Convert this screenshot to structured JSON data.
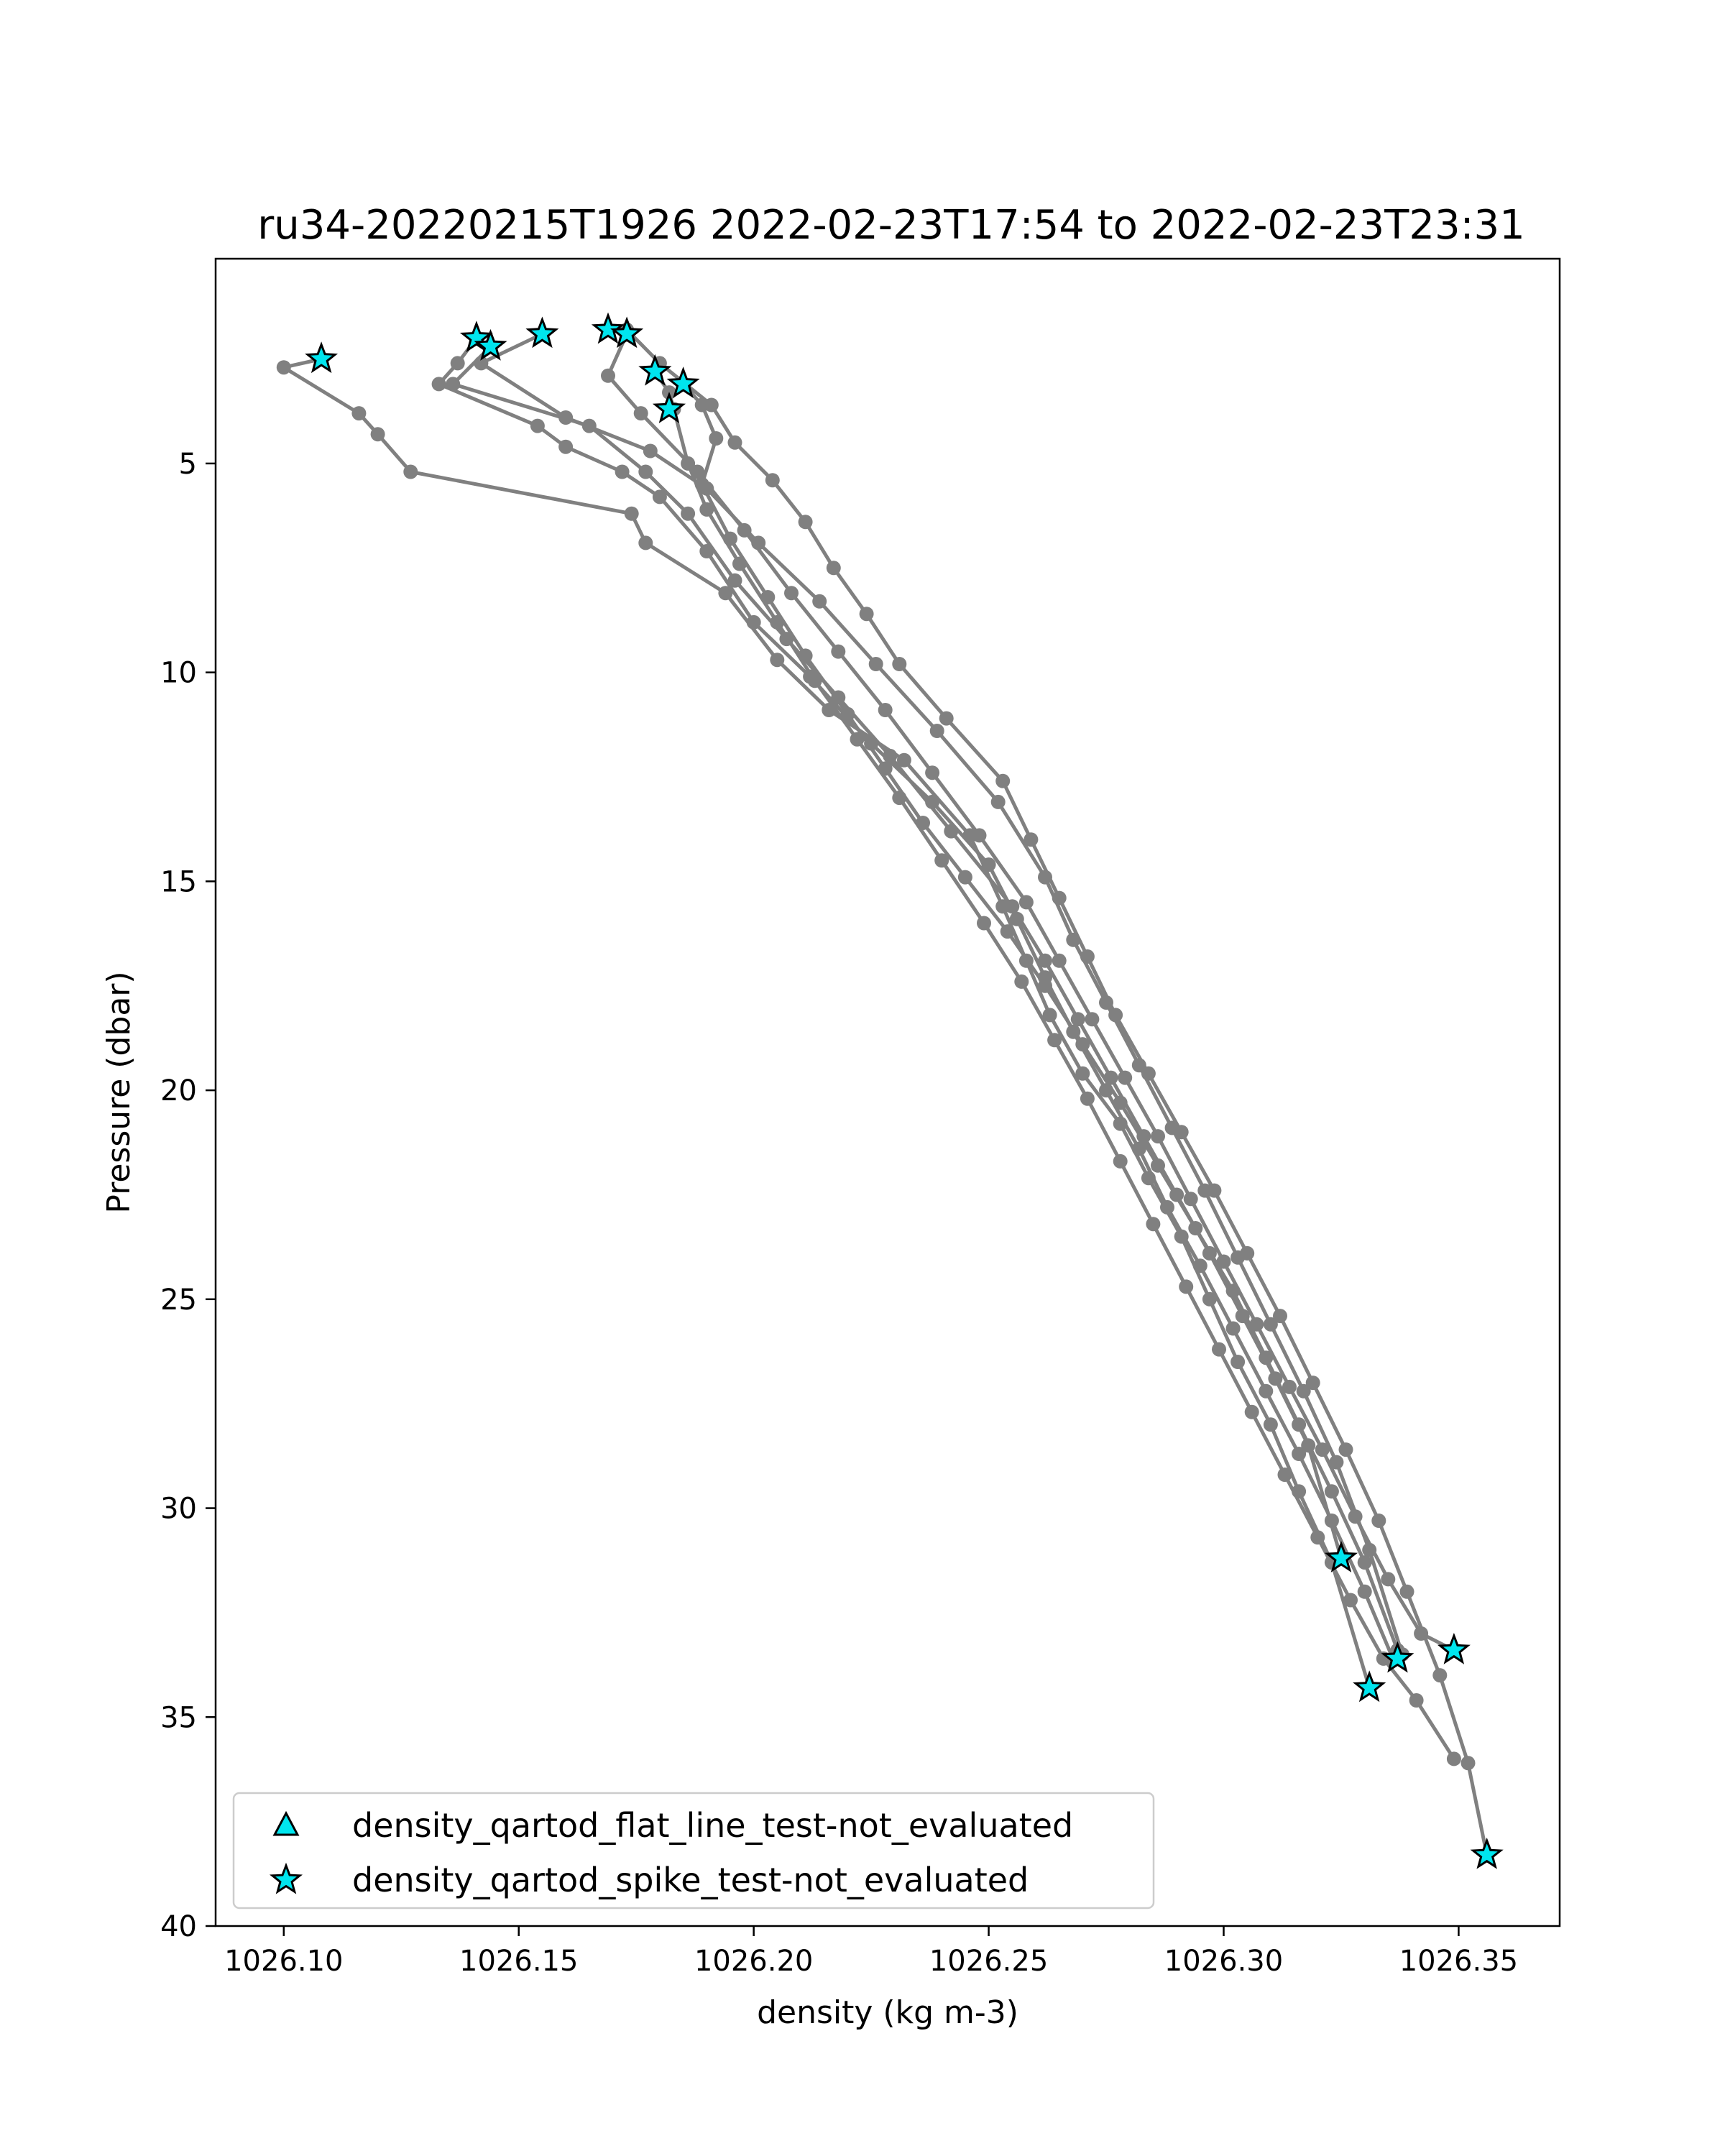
{
  "chart_data": {
    "type": "line",
    "title": "ru34-20220215T1926 2022-02-23T17:54 to 2022-02-23T23:31",
    "xlabel": "density (kg m-3)",
    "ylabel": "Pressure (dbar)",
    "xlim": [
      1026.0855,
      1026.3715
    ],
    "ylim": [
      40,
      0.1
    ],
    "y_inverted": true,
    "xticks": [
      1026.1,
      1026.15,
      1026.2,
      1026.25,
      1026.3,
      1026.35
    ],
    "xtick_labels": [
      "1026.10",
      "1026.15",
      "1026.20",
      "1026.25",
      "1026.30",
      "1026.35"
    ],
    "yticks": [
      5,
      10,
      15,
      20,
      25,
      30,
      35,
      40
    ],
    "ytick_labels": [
      "5",
      "10",
      "15",
      "20",
      "25",
      "30",
      "35",
      "40"
    ],
    "grid": false,
    "legend_position": "lower-left",
    "colors": {
      "profile_line": "#808080",
      "marker_fill": "#00e5ee",
      "marker_edge": "#000000"
    },
    "legend": [
      {
        "label": "density_qartod_flat_line_test-not_evaluated",
        "marker": "triangle"
      },
      {
        "label": "density_qartod_spike_test-not_evaluated",
        "marker": "star"
      }
    ],
    "series": [
      {
        "x": [
          1026.108,
          1026.1,
          1026.116,
          1026.12,
          1026.127,
          1026.174,
          1026.177,
          1026.194,
          1026.205,
          1026.216,
          1026.232,
          1026.246,
          1026.253,
          1026.258,
          1026.263,
          1026.27,
          1026.278,
          1026.284,
          1026.291,
          1026.297,
          1026.303,
          1026.31,
          1026.316,
          1026.323,
          1026.331
        ],
        "y": [
          2.5,
          2.7,
          3.8,
          4.3,
          5.2,
          6.2,
          6.9,
          8.1,
          9.7,
          10.9,
          12.1,
          13.9,
          15.6,
          16.9,
          18.2,
          19.6,
          20.8,
          22.1,
          23.5,
          25.0,
          26.5,
          28.0,
          29.6,
          31.3,
          34.3
        ]
      },
      {
        "x": [
          1026.141,
          1026.137,
          1026.133,
          1026.154,
          1026.16,
          1026.172,
          1026.18,
          1026.19,
          1026.2,
          1026.212,
          1026.225,
          1026.238,
          1026.25,
          1026.256,
          1026.262,
          1026.268,
          1026.275,
          1026.282,
          1026.288,
          1026.295,
          1026.302,
          1026.309,
          1026.316,
          1026.323,
          1026.33,
          1026.336
        ],
        "y": [
          2.0,
          2.6,
          3.1,
          4.1,
          4.6,
          5.2,
          5.8,
          7.1,
          8.8,
          10.1,
          11.7,
          13.1,
          14.6,
          15.9,
          17.3,
          18.6,
          20.0,
          21.4,
          22.8,
          24.2,
          25.7,
          27.2,
          28.7,
          30.3,
          32.0,
          33.6
        ]
      },
      {
        "x": [
          1026.144,
          1026.136,
          1026.165,
          1026.177,
          1026.186,
          1026.196,
          1026.207,
          1026.218,
          1026.229,
          1026.242,
          1026.255,
          1026.262,
          1026.269,
          1026.276,
          1026.283,
          1026.29,
          1026.297,
          1026.304,
          1026.311,
          1026.318,
          1026.325
        ],
        "y": [
          2.2,
          3.1,
          4.1,
          5.2,
          6.2,
          7.8,
          9.2,
          10.6,
          12.0,
          13.8,
          15.6,
          16.9,
          18.3,
          19.7,
          21.1,
          22.5,
          23.9,
          25.4,
          26.9,
          28.5,
          31.2
        ]
      },
      {
        "x": [
          1026.155,
          1026.142,
          1026.16,
          1026.178,
          1026.19,
          1026.201,
          1026.214,
          1026.226,
          1026.239,
          1026.252,
          1026.262,
          1026.268,
          1026.275,
          1026.282,
          1026.289,
          1026.296,
          1026.303,
          1026.31,
          1026.317,
          1026.324,
          1026.331,
          1026.338
        ],
        "y": [
          1.9,
          2.6,
          3.9,
          4.7,
          5.6,
          6.9,
          8.3,
          9.8,
          11.4,
          13.1,
          14.9,
          16.4,
          17.9,
          19.4,
          20.9,
          22.4,
          24.0,
          25.6,
          27.2,
          28.9,
          31.0,
          33.5
        ]
      },
      {
        "x": [
          1026.169,
          1026.173,
          1026.18,
          1026.191,
          1026.196,
          1026.204,
          1026.211,
          1026.217,
          1026.224,
          1026.231,
          1026.241,
          1026.253,
          1026.259,
          1026.265,
          1026.271,
          1026.277,
          1026.284,
          1026.291,
          1026.298,
          1026.305,
          1026.312,
          1026.319,
          1026.326,
          1026.333,
          1026.339,
          1026.346,
          1026.352,
          1026.356
        ],
        "y": [
          1.8,
          1.8,
          2.6,
          3.6,
          4.5,
          5.4,
          6.4,
          7.5,
          8.6,
          9.8,
          11.1,
          12.6,
          14.0,
          15.4,
          16.8,
          18.2,
          19.6,
          21.0,
          22.4,
          23.9,
          25.4,
          27.0,
          28.6,
          30.3,
          32.0,
          34.0,
          36.1,
          38.3
        ]
      },
      {
        "x": [
          1026.173,
          1026.169,
          1026.176,
          1026.188,
          1026.198,
          1026.208,
          1026.218,
          1026.228,
          1026.238,
          1026.248,
          1026.258,
          1026.265,
          1026.272,
          1026.279,
          1026.286,
          1026.293,
          1026.3,
          1026.307,
          1026.314,
          1026.321,
          1026.328,
          1026.335,
          1026.342,
          1026.349
        ],
        "y": [
          1.9,
          2.9,
          3.8,
          5.2,
          6.6,
          8.1,
          9.5,
          10.9,
          12.4,
          13.9,
          15.5,
          16.9,
          18.3,
          19.7,
          21.1,
          22.6,
          24.1,
          25.6,
          27.1,
          28.6,
          30.2,
          31.7,
          33.0,
          33.4
        ]
      },
      {
        "x": [
          1026.179,
          1026.182,
          1026.183,
          1026.186,
          1026.19,
          1026.197,
          1026.205,
          1026.213,
          1026.222,
          1026.231,
          1026.24,
          1026.249,
          1026.257,
          1026.264,
          1026.271,
          1026.278,
          1026.285,
          1026.292,
          1026.299,
          1026.306,
          1026.313,
          1026.32,
          1026.327,
          1026.334,
          1026.341,
          1026.349
        ],
        "y": [
          2.8,
          3.3,
          3.7,
          5.0,
          6.1,
          7.4,
          8.8,
          10.2,
          11.6,
          13.0,
          14.5,
          16.0,
          17.4,
          18.8,
          20.2,
          21.7,
          23.2,
          24.7,
          26.2,
          27.7,
          29.2,
          30.7,
          32.2,
          33.6,
          34.6,
          36.0
        ]
      },
      {
        "x": [
          1026.185,
          1026.189,
          1026.192,
          1026.189,
          1026.195,
          1026.203,
          1026.211,
          1026.22,
          1026.228,
          1026.236,
          1026.245,
          1026.254,
          1026.262,
          1026.27,
          1026.278,
          1026.286,
          1026.294,
          1026.302,
          1026.309,
          1026.316,
          1026.323,
          1026.33,
          1026.337
        ],
        "y": [
          3.1,
          3.6,
          4.4,
          5.5,
          6.8,
          8.2,
          9.6,
          11.0,
          12.3,
          13.6,
          14.9,
          16.2,
          17.5,
          18.9,
          20.3,
          21.8,
          23.3,
          24.8,
          26.4,
          28.0,
          29.6,
          31.3,
          33.4
        ]
      }
    ],
    "flagged_points": [
      {
        "x": 1026.108,
        "y": 2.5,
        "flag": "spike"
      },
      {
        "x": 1026.141,
        "y": 2.0,
        "flag": "spike"
      },
      {
        "x": 1026.144,
        "y": 2.2,
        "flag": "spike"
      },
      {
        "x": 1026.155,
        "y": 1.9,
        "flag": "spike"
      },
      {
        "x": 1026.169,
        "y": 1.8,
        "flag": "spike"
      },
      {
        "x": 1026.173,
        "y": 1.9,
        "flag": "spike"
      },
      {
        "x": 1026.179,
        "y": 2.8,
        "flag": "spike"
      },
      {
        "x": 1026.185,
        "y": 3.1,
        "flag": "spike"
      },
      {
        "x": 1026.182,
        "y": 3.7,
        "flag": "spike"
      },
      {
        "x": 1026.325,
        "y": 31.2,
        "flag": "spike"
      },
      {
        "x": 1026.331,
        "y": 34.3,
        "flag": "spike"
      },
      {
        "x": 1026.337,
        "y": 33.6,
        "flag": "spike"
      },
      {
        "x": 1026.349,
        "y": 33.4,
        "flag": "spike"
      },
      {
        "x": 1026.356,
        "y": 38.3,
        "flag": "spike"
      }
    ]
  }
}
